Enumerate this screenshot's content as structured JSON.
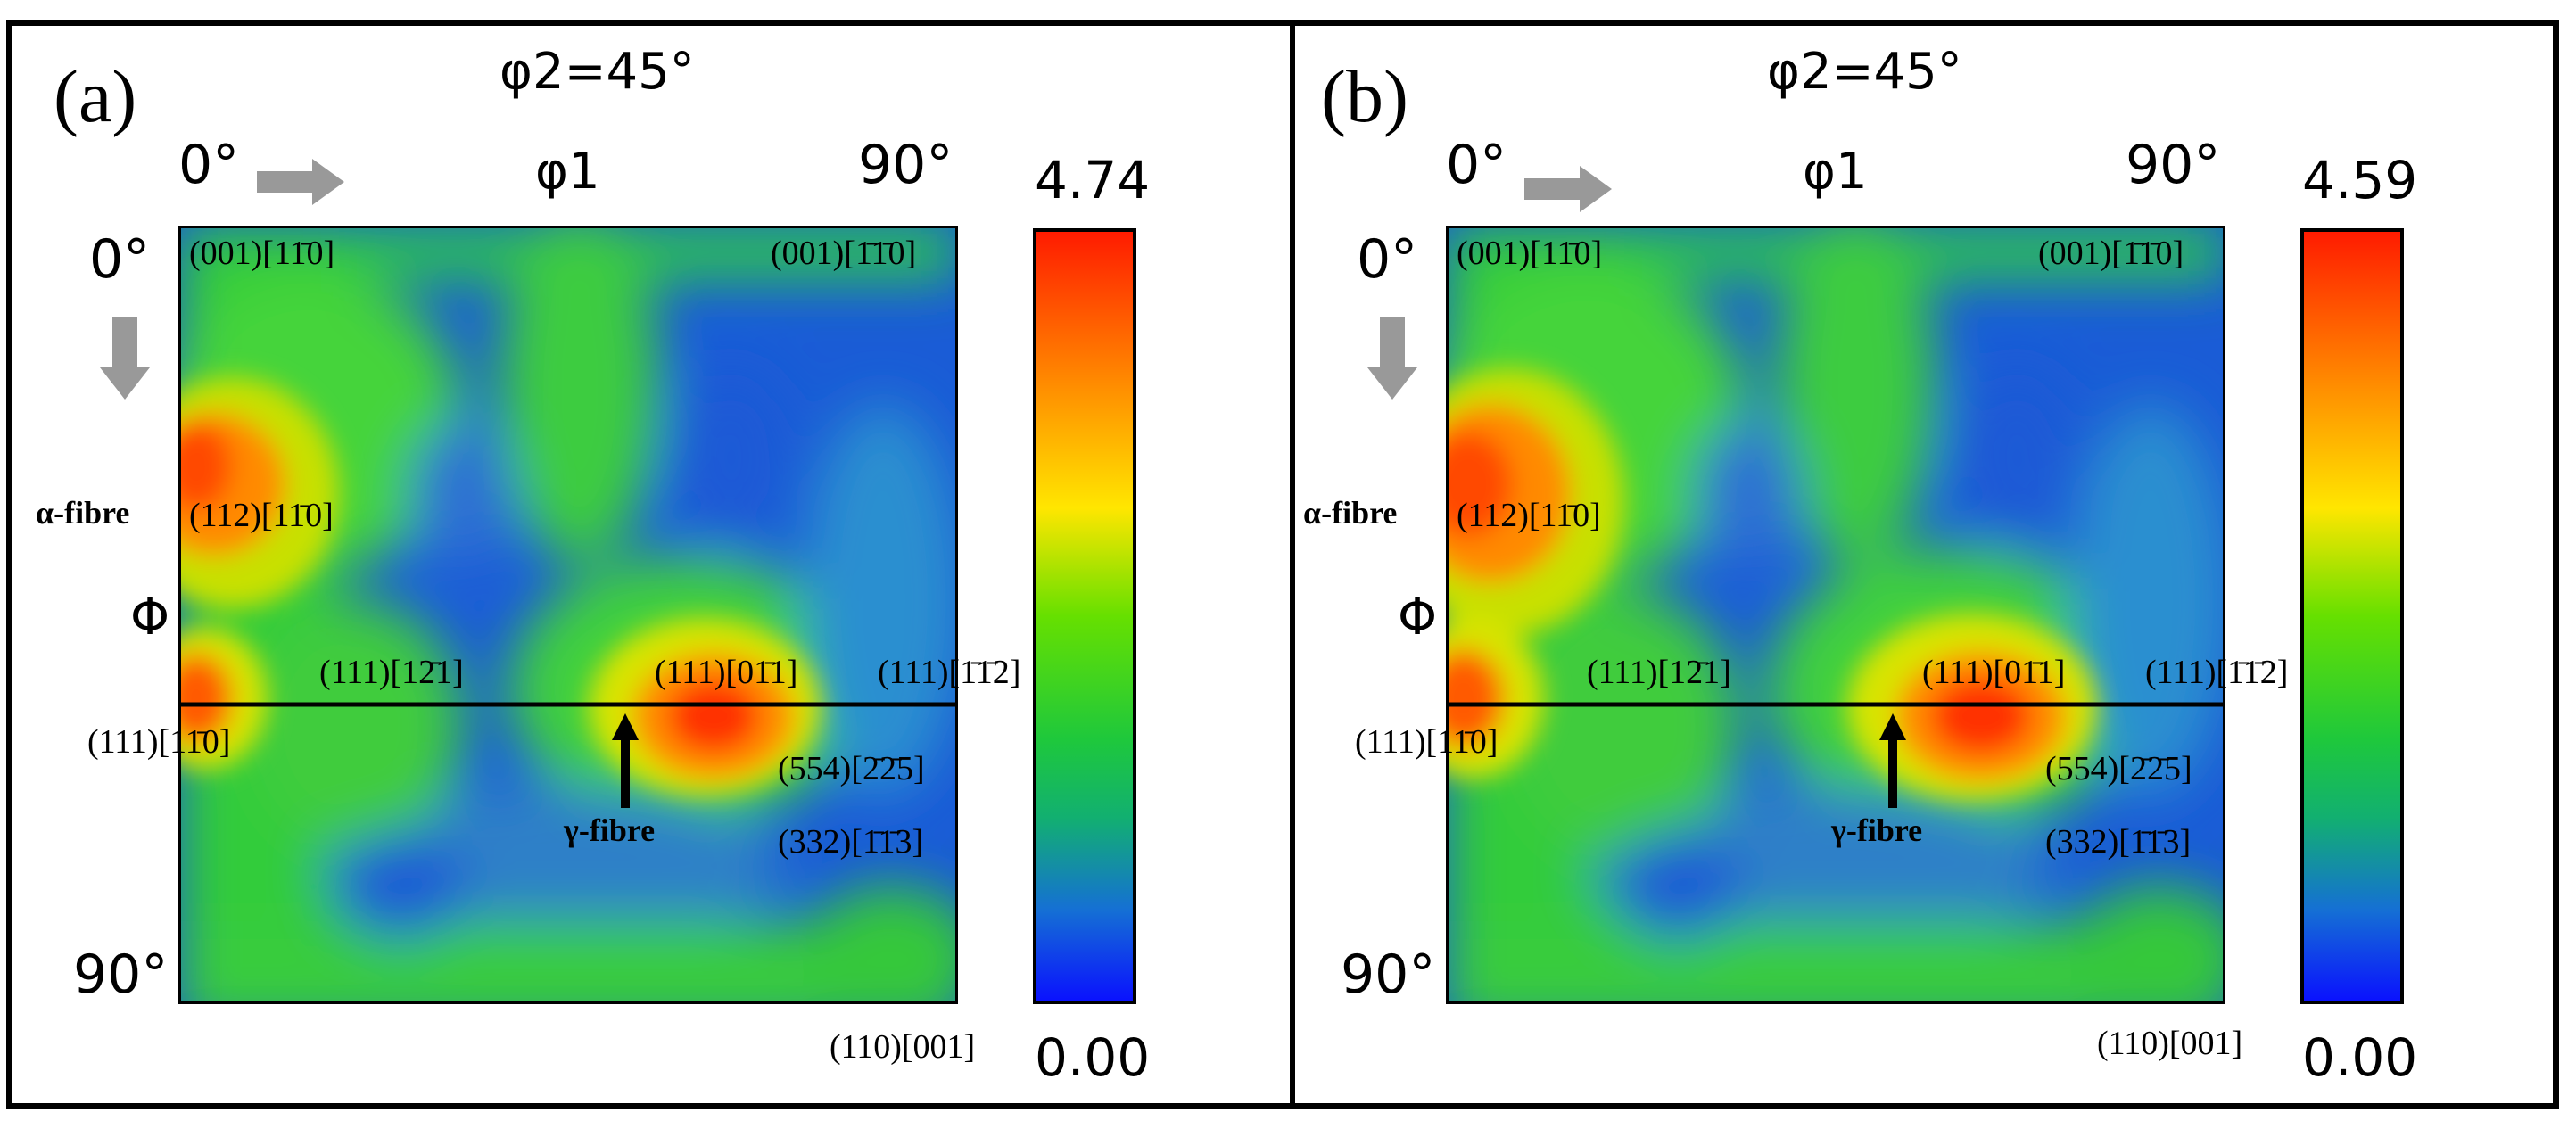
{
  "panels": [
    {
      "id": "a",
      "panel_label": "(a)",
      "section_title": "φ2=45°",
      "x_axis": {
        "start": "0°",
        "name": "φ1",
        "end": "90°"
      },
      "y_axis": {
        "start": "0°",
        "name": "Φ",
        "end": "90°"
      },
      "colorbar": {
        "max": "4.74",
        "min": "0.00"
      },
      "annotations": {
        "cube_rot_left": "(001)[11̄0]",
        "cube_rot_right": "(001)[1̄1̄0]",
        "alpha_fibre": "α-fibre",
        "alpha_orient": "(112)[11̄0]",
        "gamma_1": "(111)[12̄1]",
        "gamma_2": "(111)[01̄1]",
        "gamma_3": "(111)[1̄1̄2]",
        "gamma_corner": "(111)[11̄0]",
        "gamma_fibre": "γ-fibre",
        "o554": "(554)[2̄2̄5]",
        "o332": "(332)[1̄1̄3]",
        "goss": "(110)[001]"
      }
    },
    {
      "id": "b",
      "panel_label": "(b)",
      "section_title": "φ2=45°",
      "x_axis": {
        "start": "0°",
        "name": "φ1",
        "end": "90°"
      },
      "y_axis": {
        "start": "0°",
        "name": "Φ",
        "end": "90°"
      },
      "colorbar": {
        "max": "4.59",
        "min": "0.00"
      },
      "annotations": {
        "cube_rot_left": "(001)[11̄0]",
        "cube_rot_right": "(001)[1̄1̄0]",
        "alpha_fibre": "α-fibre",
        "alpha_orient": "(112)[11̄0]",
        "gamma_1": "(111)[12̄1]",
        "gamma_2": "(111)[01̄1]",
        "gamma_3": "(111)[1̄1̄2]",
        "gamma_corner": "(111)[11̄0]",
        "gamma_fibre": "γ-fibre",
        "o554": "(554)[2̄2̄5]",
        "o332": "(332)[1̄1̄3]",
        "goss": "(110)[001]"
      }
    }
  ]
}
